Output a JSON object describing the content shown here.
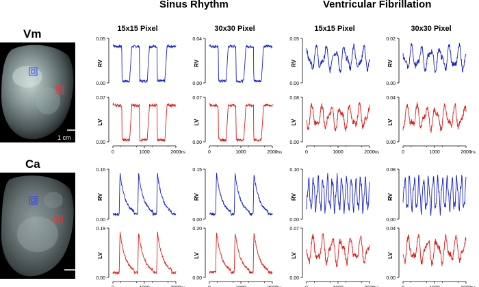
{
  "headers": {
    "sinus": "Sinus Rhythm",
    "vf": "Ventricular Fibrillation"
  },
  "subheaders": [
    "15x15 Pixel",
    "30x30 Pixel",
    "15x15 Pixel",
    "30x30 Pixel"
  ],
  "signals": {
    "vm": "Vm",
    "ca": "Ca"
  },
  "scale_bar_label": "1 cm",
  "row_labels": {
    "rv": "RV",
    "lv": "LV"
  },
  "time_axis": {
    "ticks": [
      "0",
      "1000",
      "2000"
    ],
    "unit": "ms"
  },
  "colors": {
    "rv": "#1520c8",
    "lv": "#e01a1a",
    "roi_rv": "#2a3cff",
    "roi_lv": "#ff3030"
  },
  "chart_data": [
    {
      "type": "line",
      "signal": "Vm",
      "region": "RV",
      "condition": "Sinus Rhythm",
      "pixel": "15x15 Pixel",
      "ylim": [
        0,
        0.05
      ],
      "yticks": [
        "0.00",
        "0.05"
      ],
      "xlim": [
        0,
        2000
      ],
      "pattern": "ap_down",
      "color": "#1520c8"
    },
    {
      "type": "line",
      "signal": "Vm",
      "region": "RV",
      "condition": "Sinus Rhythm",
      "pixel": "30x30 Pixel",
      "ylim": [
        0,
        0.04
      ],
      "yticks": [
        "0.00",
        "0.04"
      ],
      "xlim": [
        0,
        2000
      ],
      "pattern": "ap_down",
      "color": "#1520c8"
    },
    {
      "type": "line",
      "signal": "Vm",
      "region": "RV",
      "condition": "Ventricular Fibrillation",
      "pixel": "15x15 Pixel",
      "ylim": [
        0,
        0.05
      ],
      "yticks": [
        "0.00",
        "0.05"
      ],
      "xlim": [
        0,
        2000
      ],
      "pattern": "vf",
      "color": "#1520c8"
    },
    {
      "type": "line",
      "signal": "Vm",
      "region": "RV",
      "condition": "Ventricular Fibrillation",
      "pixel": "30x30 Pixel",
      "ylim": [
        0,
        0.02
      ],
      "yticks": [
        "0.00",
        "0.02"
      ],
      "xlim": [
        0,
        2000
      ],
      "pattern": "vf",
      "color": "#1520c8"
    },
    {
      "type": "line",
      "signal": "Vm",
      "region": "LV",
      "condition": "Sinus Rhythm",
      "pixel": "15x15 Pixel",
      "ylim": [
        0,
        0.07
      ],
      "yticks": [
        "0.00",
        "0.07"
      ],
      "xlim": [
        0,
        2000
      ],
      "pattern": "ap_down",
      "color": "#e01a1a"
    },
    {
      "type": "line",
      "signal": "Vm",
      "region": "LV",
      "condition": "Sinus Rhythm",
      "pixel": "30x30 Pixel",
      "ylim": [
        0,
        0.07
      ],
      "yticks": [
        "0.00",
        "0.07"
      ],
      "xlim": [
        0,
        2000
      ],
      "pattern": "ap_down",
      "color": "#e01a1a"
    },
    {
      "type": "line",
      "signal": "Vm",
      "region": "LV",
      "condition": "Ventricular Fibrillation",
      "pixel": "15x15 Pixel",
      "ylim": [
        0,
        0.08
      ],
      "yticks": [
        "0.00",
        "0.08"
      ],
      "xlim": [
        0,
        2000
      ],
      "pattern": "vf",
      "color": "#e01a1a"
    },
    {
      "type": "line",
      "signal": "Vm",
      "region": "LV",
      "condition": "Ventricular Fibrillation",
      "pixel": "30x30 Pixel",
      "ylim": [
        0,
        0.04
      ],
      "yticks": [
        "0.00",
        "0.04"
      ],
      "xlim": [
        0,
        2000
      ],
      "pattern": "vf",
      "color": "#e01a1a"
    },
    {
      "type": "line",
      "signal": "Ca",
      "region": "RV",
      "condition": "Sinus Rhythm",
      "pixel": "15x15 Pixel",
      "ylim": [
        0,
        0.16
      ],
      "yticks": [
        "0.00",
        "0.16"
      ],
      "xlim": [
        0,
        2000
      ],
      "pattern": "ca_up",
      "color": "#1520c8"
    },
    {
      "type": "line",
      "signal": "Ca",
      "region": "RV",
      "condition": "Sinus Rhythm",
      "pixel": "30x30 Pixel",
      "ylim": [
        0,
        0.15
      ],
      "yticks": [
        "0.00",
        "0.15"
      ],
      "xlim": [
        0,
        2000
      ],
      "pattern": "ca_up",
      "color": "#1520c8"
    },
    {
      "type": "line",
      "signal": "Ca",
      "region": "RV",
      "condition": "Ventricular Fibrillation",
      "pixel": "15x15 Pixel",
      "ylim": [
        0,
        0.1
      ],
      "yticks": [
        "0.00",
        "0.10"
      ],
      "xlim": [
        0,
        2000
      ],
      "pattern": "vf_fast",
      "color": "#1520c8"
    },
    {
      "type": "line",
      "signal": "Ca",
      "region": "RV",
      "condition": "Ventricular Fibrillation",
      "pixel": "30x30 Pixel",
      "ylim": [
        0,
        0.08
      ],
      "yticks": [
        "0.00",
        "0.08"
      ],
      "xlim": [
        0,
        2000
      ],
      "pattern": "vf_fast",
      "color": "#1520c8"
    },
    {
      "type": "line",
      "signal": "Ca",
      "region": "LV",
      "condition": "Sinus Rhythm",
      "pixel": "15x15 Pixel",
      "ylim": [
        0,
        0.19
      ],
      "yticks": [
        "0.00",
        "0.19"
      ],
      "xlim": [
        0,
        2000
      ],
      "pattern": "ca_up",
      "color": "#e01a1a"
    },
    {
      "type": "line",
      "signal": "Ca",
      "region": "LV",
      "condition": "Sinus Rhythm",
      "pixel": "30x30 Pixel",
      "ylim": [
        0,
        0.2
      ],
      "yticks": [
        "0.00",
        "0.20"
      ],
      "xlim": [
        0,
        2000
      ],
      "pattern": "ca_up",
      "color": "#e01a1a"
    },
    {
      "type": "line",
      "signal": "Ca",
      "region": "LV",
      "condition": "Ventricular Fibrillation",
      "pixel": "15x15 Pixel",
      "ylim": [
        0,
        0.07
      ],
      "yticks": [
        "0.00",
        "0.07"
      ],
      "xlim": [
        0,
        2000
      ],
      "pattern": "vf",
      "color": "#e01a1a"
    },
    {
      "type": "line",
      "signal": "Ca",
      "region": "LV",
      "condition": "Ventricular Fibrillation",
      "pixel": "30x30 Pixel",
      "ylim": [
        0,
        0.04
      ],
      "yticks": [
        "0.00",
        "0.04"
      ],
      "xlim": [
        0,
        2000
      ],
      "pattern": "vf",
      "color": "#e01a1a"
    }
  ]
}
